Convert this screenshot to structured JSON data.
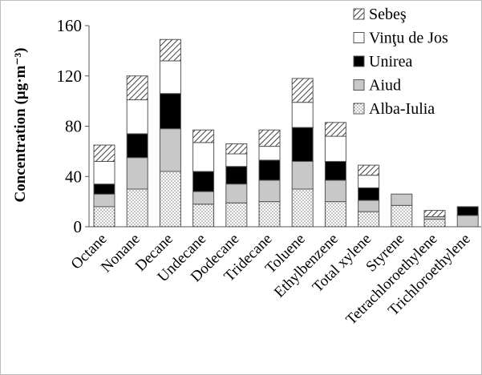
{
  "chart_data": {
    "type": "bar",
    "stacked": true,
    "ylabel": "Concentration (µg·m⁻³)",
    "ylim": [
      0,
      160
    ],
    "yticks": [
      0,
      40,
      80,
      120,
      160
    ],
    "grid": false,
    "legend_position": "top-right",
    "categories": [
      "Octane",
      "Nonane",
      "Decane",
      "Undecane",
      "Dodecane",
      "Tridecane",
      "Toluene",
      "Ethylbenzene",
      "Total xylene",
      "Styrene",
      "Tetrachloroethylene",
      "Trichloroethylene"
    ],
    "series": [
      {
        "name": "Alba-Iulia",
        "pattern": "dots",
        "values": [
          16,
          30,
          44,
          18,
          19,
          20,
          30,
          20,
          12,
          17,
          6,
          0
        ]
      },
      {
        "name": "Aiud",
        "pattern": "light-gray",
        "values": [
          10,
          25,
          34,
          10,
          15,
          17,
          22,
          17,
          9,
          9,
          2,
          9
        ]
      },
      {
        "name": "Unirea",
        "pattern": "black",
        "values": [
          8,
          19,
          28,
          16,
          14,
          16,
          27,
          15,
          10,
          0,
          0,
          7
        ]
      },
      {
        "name": "Vinţu de Jos",
        "pattern": "white",
        "values": [
          18,
          27,
          26,
          23,
          10,
          11,
          20,
          20,
          10,
          0,
          0,
          0
        ]
      },
      {
        "name": "Sebeş",
        "pattern": "diagonal-hatch",
        "values": [
          13,
          19,
          17,
          10,
          8,
          13,
          19,
          11,
          8,
          0,
          5,
          0
        ]
      }
    ]
  }
}
